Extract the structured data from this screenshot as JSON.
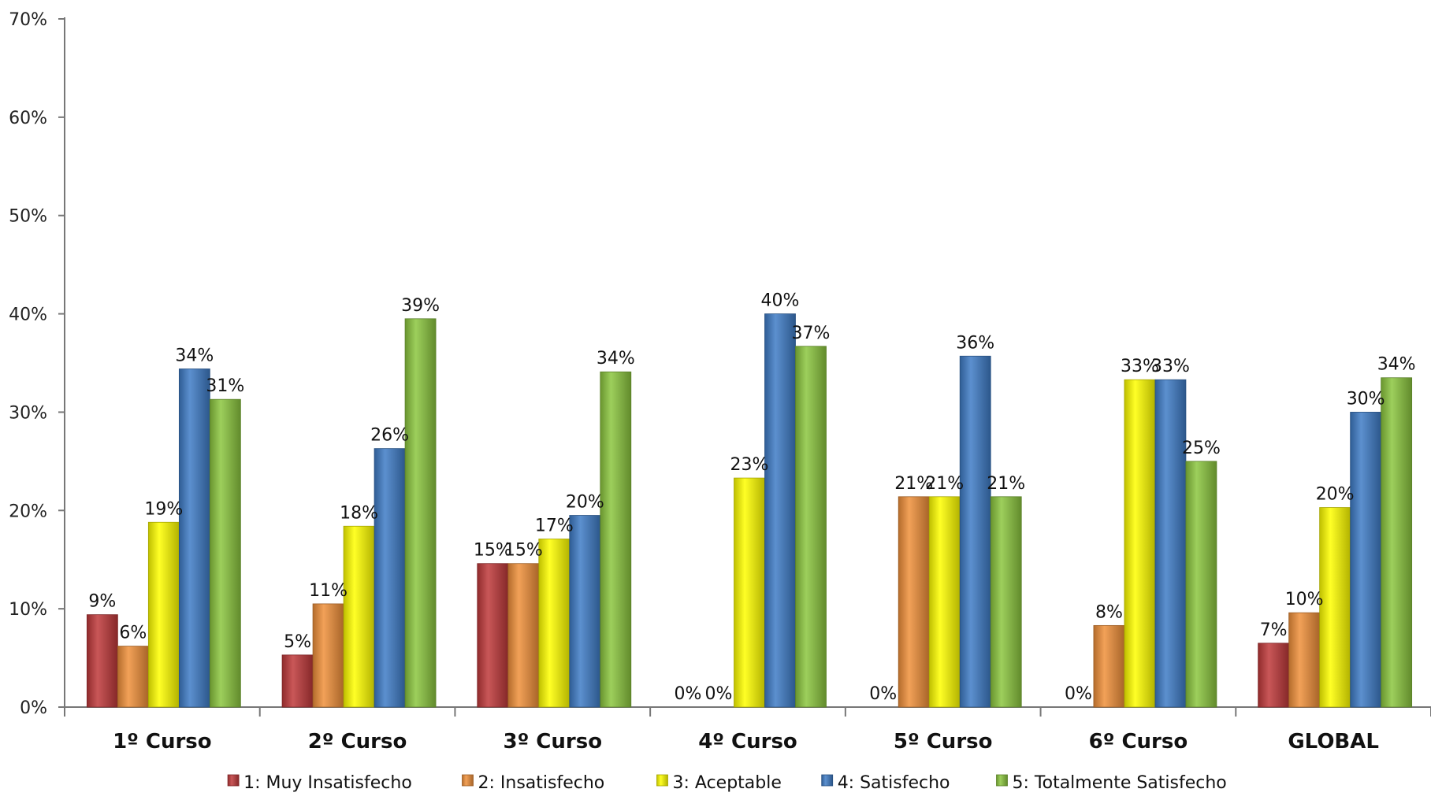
{
  "chart_data": {
    "type": "bar",
    "title": "",
    "xlabel": "",
    "ylabel": "",
    "ylim": [
      0,
      70
    ],
    "y_ticks": [
      "0%",
      "10%",
      "20%",
      "30%",
      "40%",
      "50%",
      "60%",
      "70%"
    ],
    "grid": false,
    "legend_position": "bottom",
    "categories": [
      "1º Curso",
      "2º Curso",
      "3º Curso",
      "4º Curso",
      "5º Curso",
      "6º Curso",
      "GLOBAL"
    ],
    "series": [
      {
        "name": "1: Muy Insatisfecho",
        "color": "#c0393b",
        "values": [
          9.4,
          5.3,
          14.6,
          0,
          0,
          0,
          6.5
        ],
        "labels": [
          "9%",
          "5%",
          "15%",
          "0%",
          "0%",
          "0%",
          "7%"
        ]
      },
      {
        "name": "2: Insatisfecho",
        "color": "#f0903a",
        "values": [
          6.2,
          10.5,
          14.6,
          0,
          21.4,
          8.3,
          9.6
        ],
        "labels": [
          "6%",
          "11%",
          "15%",
          "0%",
          "21%",
          "8%",
          "10%"
        ]
      },
      {
        "name": "3: Aceptable",
        "color": "#ffff00",
        "values": [
          18.8,
          18.4,
          17.1,
          23.3,
          21.4,
          33.3,
          20.3
        ],
        "labels": [
          "19%",
          "18%",
          "17%",
          "23%",
          "21%",
          "33%",
          "20%"
        ]
      },
      {
        "name": "4: Satisfecho",
        "color": "#3f7cc7",
        "values": [
          34.4,
          26.3,
          19.5,
          40.0,
          35.7,
          33.3,
          30.0
        ],
        "labels": [
          "34%",
          "26%",
          "20%",
          "40%",
          "36%",
          "33%",
          "30%"
        ]
      },
      {
        "name": "5: Totalmente Satisfecho",
        "color": "#8cc63f",
        "values": [
          31.3,
          39.5,
          34.1,
          36.7,
          21.4,
          25.0,
          33.5
        ],
        "labels": [
          "31%",
          "39%",
          "34%",
          "37%",
          "21%",
          "25%",
          "34%"
        ]
      }
    ]
  }
}
